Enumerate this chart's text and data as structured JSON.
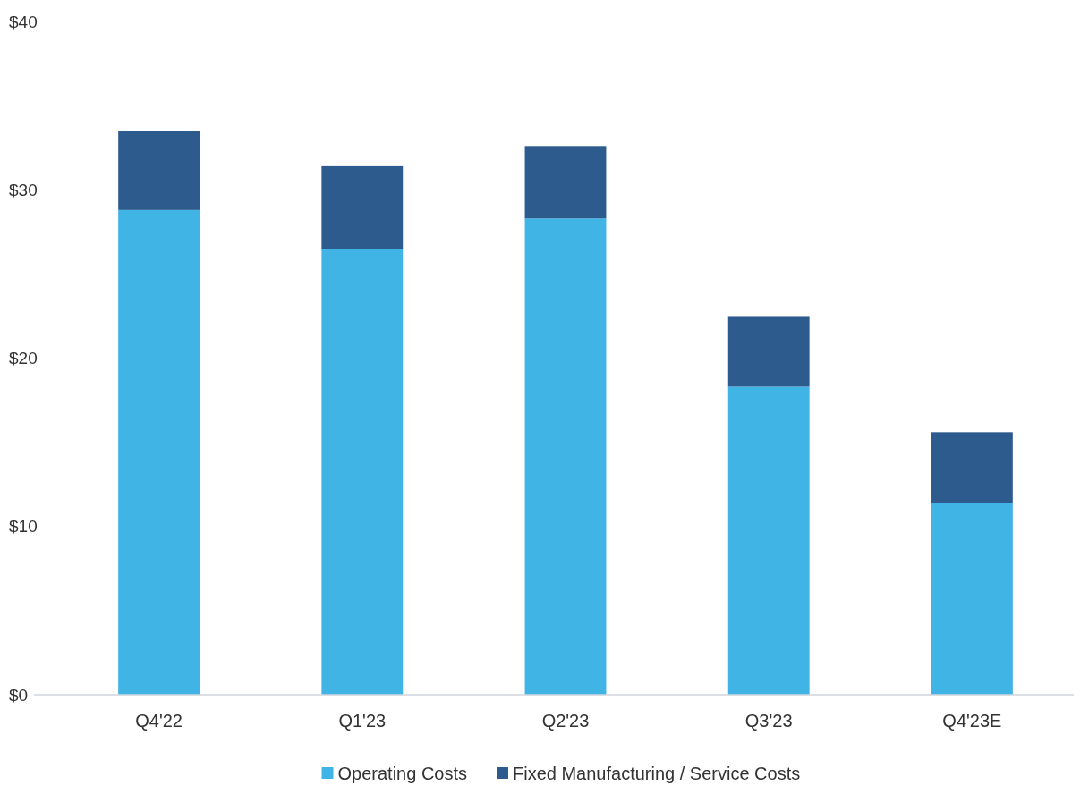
{
  "chart_data": {
    "type": "bar",
    "stacked": true,
    "categories": [
      "Q4'22",
      "Q1'23",
      "Q2'23",
      "Q3'23",
      "Q4'23E"
    ],
    "series": [
      {
        "name": "Operating Costs",
        "color": "#41b4e6",
        "values": [
          28.8,
          26.5,
          28.3,
          18.3,
          11.4
        ]
      },
      {
        "name": "Fixed Manufacturing / Service Costs",
        "color": "#2e5b8e",
        "values": [
          4.7,
          4.9,
          4.3,
          4.2,
          4.2
        ]
      }
    ],
    "ylim": [
      0,
      40
    ],
    "yticks": [
      {
        "value": 0,
        "label": "$0"
      },
      {
        "value": 10,
        "label": "$10"
      },
      {
        "value": 20,
        "label": "$20"
      },
      {
        "value": 30,
        "label": "$30"
      },
      {
        "value": 40,
        "label": "$40"
      }
    ],
    "grid": false,
    "legend": "bottom"
  }
}
